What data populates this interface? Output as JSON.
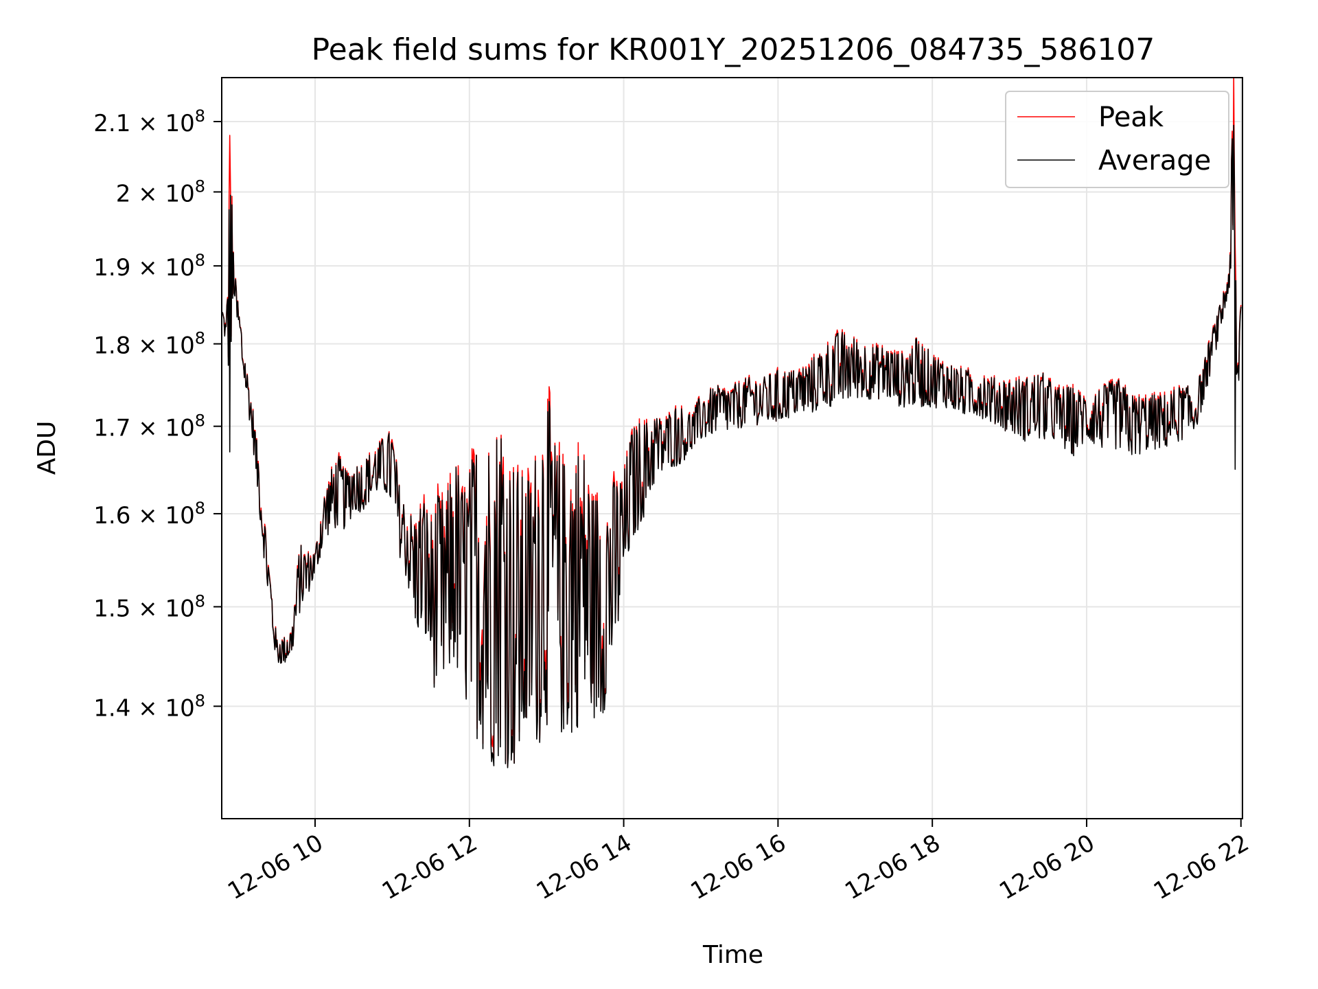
{
  "chart_data": {
    "type": "line",
    "title": "Peak field sums for KR001Y_20251206_084735_586107",
    "xlabel": "Time",
    "ylabel": "ADU",
    "yscale": "log",
    "ylim": [
      129500000,
      216500000
    ],
    "xlim_hours": [
      8.79,
      22.02
    ],
    "grid": true,
    "legend_position": "top-right",
    "x_ticks": [
      {
        "hour": 10,
        "label": "12-06 10"
      },
      {
        "hour": 12,
        "label": "12-06 12"
      },
      {
        "hour": 14,
        "label": "12-06 14"
      },
      {
        "hour": 16,
        "label": "12-06 16"
      },
      {
        "hour": 18,
        "label": "12-06 18"
      },
      {
        "hour": 20,
        "label": "12-06 20"
      },
      {
        "hour": 22,
        "label": "12-06 22"
      }
    ],
    "y_ticks": [
      {
        "value": 140000000,
        "mantissa": "1.4",
        "exp": "8"
      },
      {
        "value": 150000000,
        "mantissa": "1.5",
        "exp": "8"
      },
      {
        "value": 160000000,
        "mantissa": "1.6",
        "exp": "8"
      },
      {
        "value": 170000000,
        "mantissa": "1.7",
        "exp": "8"
      },
      {
        "value": 180000000,
        "mantissa": "1.8",
        "exp": "8"
      },
      {
        "value": 190000000,
        "mantissa": "1.9",
        "exp": "8"
      },
      {
        "value": 200000000,
        "mantissa": "2",
        "exp": "8"
      },
      {
        "value": 210000000,
        "mantissa": "2.1",
        "exp": "8"
      }
    ],
    "times_label_sep": " × 10",
    "series": [
      {
        "name": "Peak",
        "color": "#ff0000",
        "envelope": [
          [
            8.8,
            184,
            184
          ],
          [
            8.85,
            178,
            183
          ],
          [
            8.9,
            170,
            208
          ],
          [
            8.95,
            186,
            190
          ],
          [
            9.0,
            180,
            186
          ],
          [
            9.05,
            177,
            182
          ],
          [
            9.1,
            174,
            178
          ],
          [
            9.2,
            167,
            172
          ],
          [
            9.3,
            158,
            164
          ],
          [
            9.4,
            150,
            155
          ],
          [
            9.5,
            144,
            147
          ],
          [
            9.6,
            144,
            147
          ],
          [
            9.7,
            145,
            148
          ],
          [
            9.8,
            149,
            157
          ],
          [
            9.9,
            151,
            156
          ],
          [
            10.0,
            153,
            156
          ],
          [
            10.1,
            156,
            162
          ],
          [
            10.2,
            158,
            165
          ],
          [
            10.3,
            158,
            167
          ],
          [
            10.4,
            158,
            165
          ],
          [
            10.5,
            160,
            166
          ],
          [
            10.6,
            160,
            166
          ],
          [
            10.7,
            161,
            167
          ],
          [
            10.8,
            162,
            168
          ],
          [
            10.9,
            162,
            169
          ],
          [
            11.0,
            160,
            170
          ],
          [
            11.1,
            155,
            163
          ],
          [
            11.2,
            152,
            161
          ],
          [
            11.3,
            147,
            160
          ],
          [
            11.4,
            146,
            163
          ],
          [
            11.5,
            143,
            160
          ],
          [
            11.6,
            139,
            163
          ],
          [
            11.7,
            141,
            162
          ],
          [
            11.8,
            143,
            168
          ],
          [
            11.9,
            140,
            164
          ],
          [
            12.0,
            138,
            166
          ],
          [
            12.1,
            136,
            170
          ],
          [
            12.2,
            134,
            171
          ],
          [
            12.3,
            133,
            169
          ],
          [
            12.4,
            134,
            174
          ],
          [
            12.5,
            133,
            168
          ],
          [
            12.6,
            132,
            167
          ],
          [
            12.7,
            134,
            165
          ],
          [
            12.8,
            136,
            166
          ],
          [
            12.9,
            135,
            170
          ],
          [
            13.0,
            137,
            176
          ],
          [
            13.1,
            135,
            170
          ],
          [
            13.2,
            136,
            167
          ],
          [
            13.3,
            135,
            168
          ],
          [
            13.4,
            137,
            169
          ],
          [
            13.5,
            138,
            168
          ],
          [
            13.6,
            138,
            163
          ],
          [
            13.7,
            137,
            164
          ],
          [
            13.8,
            141,
            163
          ],
          [
            13.9,
            144,
            165
          ],
          [
            14.0,
            151,
            165
          ],
          [
            14.1,
            156,
            170
          ],
          [
            14.2,
            158,
            171
          ],
          [
            14.3,
            160,
            171
          ],
          [
            14.4,
            163,
            172
          ],
          [
            14.5,
            164,
            171
          ],
          [
            14.6,
            165,
            172
          ],
          [
            14.7,
            165,
            173
          ],
          [
            14.8,
            166,
            172
          ],
          [
            14.9,
            167,
            172
          ],
          [
            15.0,
            168,
            174
          ],
          [
            15.2,
            169,
            175
          ],
          [
            15.4,
            169,
            175
          ],
          [
            15.6,
            170,
            176
          ],
          [
            15.8,
            170,
            176
          ],
          [
            16.0,
            170,
            177
          ],
          [
            16.2,
            171,
            177
          ],
          [
            16.4,
            171,
            178
          ],
          [
            16.6,
            172,
            180
          ],
          [
            16.8,
            172,
            182
          ],
          [
            17.0,
            173,
            181
          ],
          [
            17.2,
            173,
            180
          ],
          [
            17.4,
            173,
            180
          ],
          [
            17.6,
            172,
            179
          ],
          [
            17.8,
            172,
            181
          ],
          [
            18.0,
            172,
            179
          ],
          [
            18.2,
            172,
            178
          ],
          [
            18.4,
            171,
            177
          ],
          [
            18.6,
            171,
            177
          ],
          [
            18.8,
            170,
            176
          ],
          [
            19.0,
            169,
            176
          ],
          [
            19.2,
            168,
            176
          ],
          [
            19.4,
            168,
            177
          ],
          [
            19.6,
            168,
            175
          ],
          [
            19.8,
            166,
            175
          ],
          [
            20.0,
            168,
            174
          ],
          [
            20.2,
            167,
            175
          ],
          [
            20.4,
            167,
            176
          ],
          [
            20.6,
            166,
            174
          ],
          [
            20.8,
            167,
            174
          ],
          [
            21.0,
            167,
            174
          ],
          [
            21.2,
            168,
            175
          ],
          [
            21.4,
            169,
            175
          ],
          [
            21.5,
            172,
            177
          ],
          [
            21.6,
            176,
            181
          ],
          [
            21.7,
            180,
            184
          ],
          [
            21.8,
            184,
            188
          ],
          [
            21.85,
            187,
            190
          ],
          [
            21.9,
            188,
            217
          ],
          [
            21.95,
            170,
            178
          ],
          [
            22.0,
            180,
            187
          ]
        ]
      },
      {
        "name": "Average",
        "color": "#000000"
      }
    ]
  }
}
